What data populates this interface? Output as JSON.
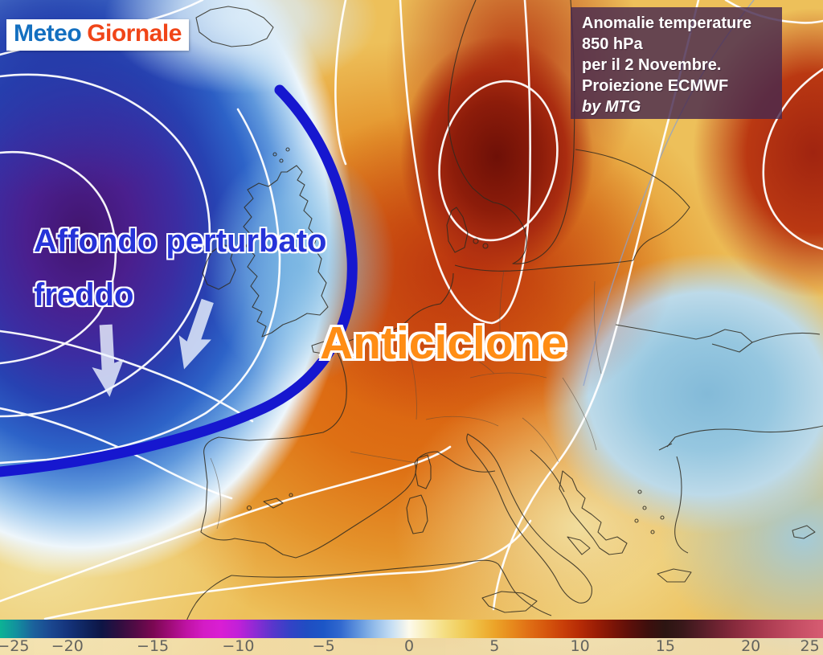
{
  "branding": {
    "meteo": "Meteo",
    "giornale": "Giornale"
  },
  "info_box": {
    "lines": [
      "Anomalie temperature",
      "850 hPa",
      "per il 2 Novembre.",
      "Proiezione ECMWF"
    ],
    "credit": "by MTG"
  },
  "annotations": {
    "cold_label_line1": "Affondo perturbato",
    "cold_label_line2": "freddo",
    "warm_label": "Anticiclone",
    "arrows": "two white arrows pointing south over the cold pool"
  },
  "colorbar": {
    "min": -25,
    "max": 25,
    "tick_step": 5,
    "ticks": [
      {
        "v": -25,
        "label": "−25"
      },
      {
        "v": -20,
        "label": "−20"
      },
      {
        "v": -15,
        "label": "−15"
      },
      {
        "v": -10,
        "label": "−10"
      },
      {
        "v": -5,
        "label": "−5"
      },
      {
        "v": 0,
        "label": "0"
      },
      {
        "v": 5,
        "label": "5"
      },
      {
        "v": 10,
        "label": "10"
      },
      {
        "v": 15,
        "label": "15"
      },
      {
        "v": 20,
        "label": "20"
      },
      {
        "v": 25,
        "label": "25"
      }
    ],
    "stops": [
      {
        "v": -25,
        "c": "#0cc391"
      },
      {
        "v": -24,
        "c": "#0cb594"
      },
      {
        "v": -23,
        "c": "#12919e"
      },
      {
        "v": -22,
        "c": "#1b629c"
      },
      {
        "v": -21,
        "c": "#1b4890"
      },
      {
        "v": -20,
        "c": "#15347c"
      },
      {
        "v": -19,
        "c": "#0f2560"
      },
      {
        "v": -18,
        "c": "#0d1545"
      },
      {
        "v": -17,
        "c": "#2e0e3f"
      },
      {
        "v": -16,
        "c": "#530b45"
      },
      {
        "v": -15,
        "c": "#7a0852"
      },
      {
        "v": -14,
        "c": "#9f0c78"
      },
      {
        "v": -13,
        "c": "#bf13a4"
      },
      {
        "v": -12,
        "c": "#d41cc6"
      },
      {
        "v": -11,
        "c": "#d91ed4"
      },
      {
        "v": -10,
        "c": "#c120d8"
      },
      {
        "v": -9,
        "c": "#8e2ad4"
      },
      {
        "v": -8,
        "c": "#5a36cc"
      },
      {
        "v": -7,
        "c": "#3442c6"
      },
      {
        "v": -6,
        "c": "#204dc2"
      },
      {
        "v": -5,
        "c": "#1c56c6"
      },
      {
        "v": -4,
        "c": "#3269cf"
      },
      {
        "v": -3,
        "c": "#6094dd"
      },
      {
        "v": -2,
        "c": "#94bdea"
      },
      {
        "v": -1,
        "c": "#c7dff4"
      },
      {
        "v": 0,
        "c": "#fdfaec"
      },
      {
        "v": 1,
        "c": "#f9edb5"
      },
      {
        "v": 2,
        "c": "#f5df85"
      },
      {
        "v": 3,
        "c": "#f1cf5f"
      },
      {
        "v": 4,
        "c": "#efbc41"
      },
      {
        "v": 5,
        "c": "#eca429"
      },
      {
        "v": 6,
        "c": "#e78a1d"
      },
      {
        "v": 7,
        "c": "#e06f15"
      },
      {
        "v": 8,
        "c": "#d6570d"
      },
      {
        "v": 9,
        "c": "#c93f09"
      },
      {
        "v": 10,
        "c": "#b62b06"
      },
      {
        "v": 11,
        "c": "#991d05"
      },
      {
        "v": 12,
        "c": "#7a1407"
      },
      {
        "v": 13,
        "c": "#5a0f0a"
      },
      {
        "v": 14,
        "c": "#3d0f0d"
      },
      {
        "v": 15,
        "c": "#2c1512"
      },
      {
        "v": 16,
        "c": "#39181a"
      },
      {
        "v": 17,
        "c": "#521d26"
      },
      {
        "v": 18,
        "c": "#6d2331"
      },
      {
        "v": 19,
        "c": "#862a3c"
      },
      {
        "v": 20,
        "c": "#9b3347"
      },
      {
        "v": 21,
        "c": "#ad3d52"
      },
      {
        "v": 22,
        "c": "#bc475d"
      },
      {
        "v": 23,
        "c": "#c95167"
      },
      {
        "v": 24,
        "c": "#d45a70"
      },
      {
        "v": 25,
        "c": "#dc6177"
      }
    ]
  },
  "colors": {
    "front_line": "#1617cf",
    "cold_label": "#2633d8",
    "warm_label": "#ff8d15",
    "logo_meteo": "#1470c0",
    "logo_giornale": "#f04518",
    "info_box_bg": "rgba(72,42,78,0.82)"
  }
}
